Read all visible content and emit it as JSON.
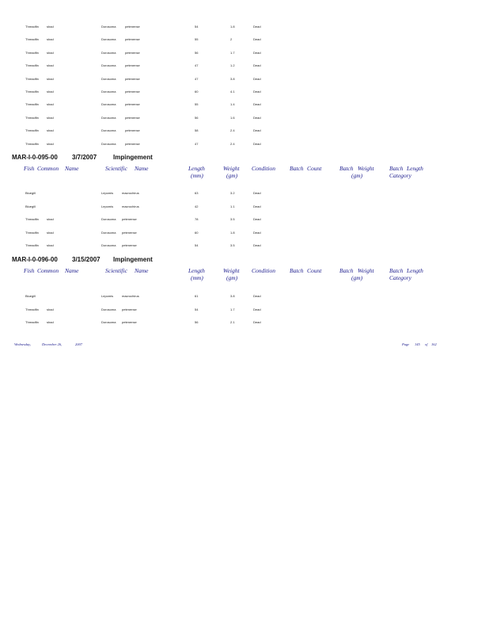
{
  "column_headers": {
    "fish": "Fish",
    "common": "Common",
    "name": "Name",
    "scientific": "Scientific",
    "sci_name": "Name",
    "length": "Length",
    "length_unit": "(mm)",
    "weight": "Weight",
    "weight_unit": "(gm)",
    "condition": "Condition",
    "batch_count_1": "Batch",
    "batch_count_2": "Count",
    "batch_weight_1": "Batch",
    "batch_weight_2": "Weight",
    "batch_weight_unit": "(gm)",
    "batch_length_1": "Batch",
    "batch_length_2": "Length",
    "batch_length_3": "Category"
  },
  "continued_rows": [
    [
      "Threadfin",
      "shad",
      "Dorosoma",
      "petenense",
      "54",
      "1.8",
      "Dead"
    ],
    [
      "Threadfin",
      "shad",
      "Dorosoma",
      "petenense",
      "55",
      "2",
      "Dead"
    ],
    [
      "Threadfin",
      "shad",
      "Dorosoma",
      "petenense",
      "56",
      "1.7",
      "Dead"
    ],
    [
      "Threadfin",
      "shad",
      "Dorosoma",
      "petenense",
      "47",
      "1.2",
      "Dead"
    ],
    [
      "Threadfin",
      "shad",
      "Dorosoma",
      "petenense",
      "47",
      "3.8",
      "Dead"
    ],
    [
      "Threadfin",
      "shad",
      "Dorosoma",
      "petenense",
      "60",
      "4.1",
      "Dead"
    ],
    [
      "Threadfin",
      "shad",
      "Dorosoma",
      "petenense",
      "55",
      "1.4",
      "Dead"
    ],
    [
      "Threadfin",
      "shad",
      "Dorosoma",
      "petenense",
      "56",
      "1.6",
      "Dead"
    ],
    [
      "Threadfin",
      "shad",
      "Dorosoma",
      "petenense",
      "58",
      "2.4",
      "Dead"
    ],
    [
      "Threadfin",
      "shad",
      "Dorosoma",
      "petenense",
      "47",
      "2.4",
      "Dead"
    ]
  ],
  "sections": [
    {
      "id": "MAR-I-0-095-00",
      "date": "3/7/2007",
      "type": "Impingement",
      "rows": [
        [
          "Bluegill",
          "",
          "Lepomis",
          "macrochirus",
          "63",
          "3.2",
          "Dead"
        ],
        [
          "Bluegill",
          "",
          "Lepomis",
          "macrochirus",
          "42",
          "1.1",
          "Dead"
        ],
        [
          "Threadfin",
          "shad",
          "Dorosoma",
          "petenense",
          "78",
          "3.5",
          "Dead"
        ],
        [
          "Threadfin",
          "shad",
          "Dorosoma",
          "petenense",
          "60",
          "1.8",
          "Dead"
        ],
        [
          "Threadfin",
          "shad",
          "Dorosoma",
          "petenense",
          "54",
          "3.5",
          "Dead"
        ]
      ]
    },
    {
      "id": "MAR-I-0-096-00",
      "date": "3/15/2007",
      "type": "Impingement",
      "rows": [
        [
          "Bluegill",
          "",
          "Lepomis",
          "macrochirus",
          "61",
          "3.8",
          "Dead"
        ],
        [
          "Threadfin",
          "shad",
          "Dorosoma",
          "petenense",
          "54",
          "1.7",
          "Dead"
        ],
        [
          "Threadfin",
          "shad",
          "Dorosoma",
          "petenense",
          "56",
          "2.1",
          "Dead"
        ]
      ]
    }
  ],
  "footer": {
    "weekday": "Wednesday,",
    "month_day": "December 26,",
    "year": "2007",
    "page_label": "Page",
    "page": "145",
    "of_label": "of",
    "total": "162"
  }
}
